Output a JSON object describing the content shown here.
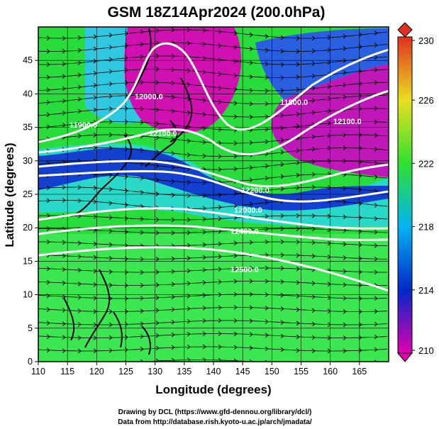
{
  "title": "GSM 18Z14Apr2024 (200.0hPa)",
  "x_axis": {
    "label": "Longitude (degrees)",
    "ticks": [
      "110",
      "115",
      "120",
      "125",
      "130",
      "135",
      "140",
      "145",
      "150",
      "155",
      "160",
      "165"
    ]
  },
  "y_axis": {
    "label": "Latitude  (degrees)",
    "ticks": [
      "0",
      "5",
      "10",
      "15",
      "20",
      "25",
      "30",
      "35",
      "40",
      "45"
    ]
  },
  "colorbar": {
    "ticks": [
      "210",
      "214",
      "218",
      "222",
      "226",
      "230"
    ],
    "colors": [
      "#e000b0",
      "#0028c8",
      "#00b4f0",
      "#30e030",
      "#e8e020",
      "#e03020"
    ]
  },
  "contour_labels": [
    "12000.0",
    "12100.0",
    "11900.0",
    "11800.0",
    "12200.0",
    "12000.0",
    "12100.0",
    "12400.0",
    "12500.0"
  ],
  "credits": [
    "Drawing by DCL (https://www.gfd-dennou.org/library/dcl/)",
    "Data from http://database.rish.kyoto-u.ac.jp/arch/jmadata/"
  ],
  "map": {
    "lon_range": [
      110,
      170
    ],
    "lat_range": [
      0,
      50
    ]
  }
}
